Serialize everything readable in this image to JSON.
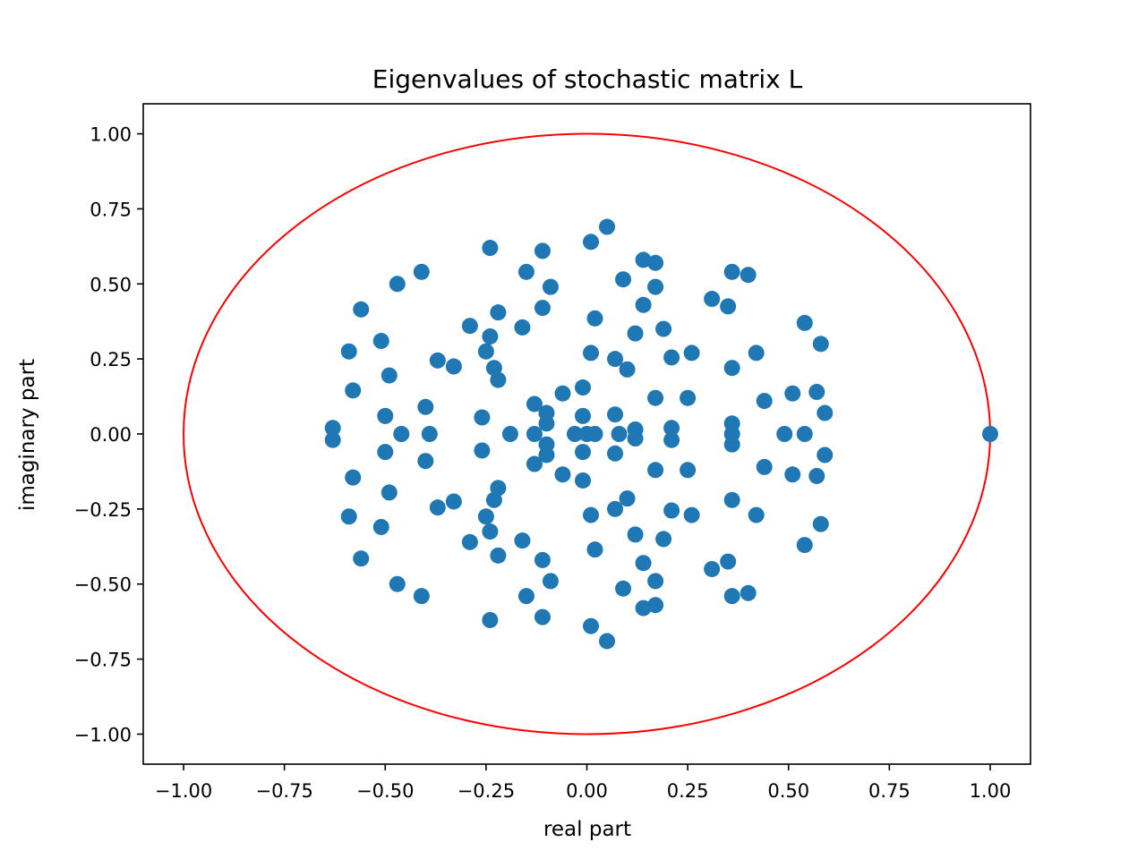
{
  "chart_data": {
    "type": "scatter",
    "title": "Eigenvalues of stochastic matrix L",
    "xlabel": "real part",
    "ylabel": "imaginary part",
    "xlim": [
      -1.1,
      1.1
    ],
    "ylim": [
      -1.1,
      1.1
    ],
    "xticks": [
      "−1.00",
      "−0.75",
      "−0.50",
      "−0.25",
      "0.00",
      "0.25",
      "0.50",
      "0.75",
      "1.00"
    ],
    "yticks": [
      "−1.00",
      "−0.75",
      "−0.50",
      "−0.25",
      "0.00",
      "0.25",
      "0.50",
      "0.75",
      "1.00"
    ],
    "xtick_values": [
      -1.0,
      -0.75,
      -0.5,
      -0.25,
      0.0,
      0.25,
      0.5,
      0.75,
      1.0
    ],
    "ytick_values": [
      -1.0,
      -0.75,
      -0.5,
      -0.25,
      0.0,
      0.25,
      0.5,
      0.75,
      1.0
    ],
    "grid": false,
    "colors": {
      "points": "#1f77b4",
      "unit_circle": "#ff0000",
      "frame": "#000000"
    },
    "unit_circle": {
      "center": [
        0,
        0
      ],
      "radius": 1.0
    },
    "points": [
      [
        1.0,
        0.0
      ],
      [
        0.05,
        0.69
      ],
      [
        0.05,
        -0.69
      ],
      [
        0.01,
        0.64
      ],
      [
        0.01,
        -0.64
      ],
      [
        -0.24,
        0.62
      ],
      [
        -0.24,
        -0.62
      ],
      [
        -0.11,
        0.61
      ],
      [
        -0.11,
        -0.61
      ],
      [
        -0.15,
        0.54
      ],
      [
        -0.15,
        -0.54
      ],
      [
        -0.09,
        0.49
      ],
      [
        -0.09,
        -0.49
      ],
      [
        -0.41,
        0.54
      ],
      [
        -0.41,
        -0.54
      ],
      [
        -0.47,
        0.5
      ],
      [
        -0.47,
        -0.5
      ],
      [
        -0.56,
        0.415
      ],
      [
        -0.56,
        -0.415
      ],
      [
        -0.59,
        0.275
      ],
      [
        -0.59,
        -0.275
      ],
      [
        -0.51,
        0.31
      ],
      [
        -0.51,
        -0.31
      ],
      [
        -0.58,
        0.145
      ],
      [
        -0.58,
        -0.145
      ],
      [
        -0.49,
        0.195
      ],
      [
        -0.49,
        -0.195
      ],
      [
        -0.5,
        0.06
      ],
      [
        -0.5,
        -0.06
      ],
      [
        -0.63,
        0.02
      ],
      [
        -0.63,
        -0.02
      ],
      [
        -0.46,
        0.0
      ],
      [
        -0.4,
        0.09
      ],
      [
        -0.4,
        -0.09
      ],
      [
        -0.39,
        0.0
      ],
      [
        -0.37,
        0.245
      ],
      [
        -0.37,
        -0.245
      ],
      [
        -0.33,
        0.225
      ],
      [
        -0.33,
        -0.225
      ],
      [
        -0.29,
        0.36
      ],
      [
        -0.29,
        -0.36
      ],
      [
        -0.22,
        0.405
      ],
      [
        -0.22,
        -0.405
      ],
      [
        -0.24,
        0.325
      ],
      [
        -0.24,
        -0.325
      ],
      [
        -0.25,
        0.275
      ],
      [
        -0.25,
        -0.275
      ],
      [
        -0.23,
        0.22
      ],
      [
        -0.23,
        -0.22
      ],
      [
        -0.22,
        0.18
      ],
      [
        -0.22,
        -0.18
      ],
      [
        -0.26,
        0.055
      ],
      [
        -0.26,
        -0.055
      ],
      [
        -0.19,
        0.0
      ],
      [
        -0.16,
        0.355
      ],
      [
        -0.16,
        -0.355
      ],
      [
        -0.11,
        0.42
      ],
      [
        -0.11,
        -0.42
      ],
      [
        -0.13,
        0.1
      ],
      [
        -0.13,
        -0.1
      ],
      [
        -0.13,
        0.0
      ],
      [
        -0.1,
        0.07
      ],
      [
        -0.1,
        -0.07
      ],
      [
        -0.1,
        0.035
      ],
      [
        -0.1,
        -0.035
      ],
      [
        -0.06,
        0.135
      ],
      [
        -0.06,
        -0.135
      ],
      [
        -0.03,
        0.0
      ],
      [
        -0.01,
        0.155
      ],
      [
        -0.01,
        -0.155
      ],
      [
        -0.01,
        0.06
      ],
      [
        -0.01,
        -0.06
      ],
      [
        0.0,
        0.0
      ],
      [
        0.02,
        0.0
      ],
      [
        0.02,
        0.385
      ],
      [
        0.02,
        -0.385
      ],
      [
        0.01,
        0.27
      ],
      [
        0.01,
        -0.27
      ],
      [
        0.07,
        0.25
      ],
      [
        0.07,
        -0.25
      ],
      [
        0.07,
        0.065
      ],
      [
        0.07,
        -0.065
      ],
      [
        0.08,
        0.0
      ],
      [
        0.09,
        0.515
      ],
      [
        0.09,
        -0.515
      ],
      [
        0.1,
        0.215
      ],
      [
        0.1,
        -0.215
      ],
      [
        0.12,
        0.335
      ],
      [
        0.12,
        -0.335
      ],
      [
        0.12,
        0.015
      ],
      [
        0.12,
        -0.015
      ],
      [
        0.14,
        0.58
      ],
      [
        0.14,
        -0.58
      ],
      [
        0.14,
        0.43
      ],
      [
        0.14,
        -0.43
      ],
      [
        0.17,
        0.57
      ],
      [
        0.17,
        -0.57
      ],
      [
        0.17,
        0.49
      ],
      [
        0.17,
        -0.49
      ],
      [
        0.17,
        0.12
      ],
      [
        0.17,
        -0.12
      ],
      [
        0.19,
        0.35
      ],
      [
        0.19,
        -0.35
      ],
      [
        0.21,
        0.255
      ],
      [
        0.21,
        -0.255
      ],
      [
        0.21,
        0.02
      ],
      [
        0.21,
        -0.02
      ],
      [
        0.25,
        0.12
      ],
      [
        0.25,
        -0.12
      ],
      [
        0.26,
        0.27
      ],
      [
        0.26,
        -0.27
      ],
      [
        0.31,
        0.45
      ],
      [
        0.31,
        -0.45
      ],
      [
        0.35,
        0.425
      ],
      [
        0.35,
        -0.425
      ],
      [
        0.36,
        0.54
      ],
      [
        0.36,
        -0.54
      ],
      [
        0.36,
        0.22
      ],
      [
        0.36,
        -0.22
      ],
      [
        0.36,
        0.035
      ],
      [
        0.36,
        -0.035
      ],
      [
        0.36,
        0.0
      ],
      [
        0.4,
        0.53
      ],
      [
        0.4,
        -0.53
      ],
      [
        0.42,
        0.27
      ],
      [
        0.42,
        -0.27
      ],
      [
        0.44,
        0.11
      ],
      [
        0.44,
        -0.11
      ],
      [
        0.49,
        0.0
      ],
      [
        0.51,
        0.135
      ],
      [
        0.51,
        -0.135
      ],
      [
        0.54,
        0.37
      ],
      [
        0.54,
        -0.37
      ],
      [
        0.54,
        0.0
      ],
      [
        0.57,
        0.14
      ],
      [
        0.57,
        -0.14
      ],
      [
        0.58,
        0.3
      ],
      [
        0.58,
        -0.3
      ],
      [
        0.59,
        0.07
      ],
      [
        0.59,
        -0.07
      ]
    ]
  }
}
